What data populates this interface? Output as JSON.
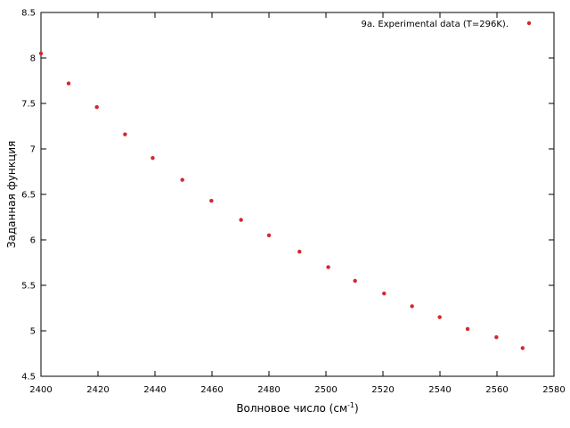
{
  "chart_data": {
    "type": "scatter",
    "xlabel": "Волновое число (см",
    "xlabel_sup": "-1",
    "xlabel_end": ")",
    "ylabel": "Заданная функция",
    "xlim": [
      2400,
      2580
    ],
    "ylim": [
      4.5,
      8.5
    ],
    "x_ticks": [
      "2400",
      "2420",
      "2440",
      "2460",
      "2480",
      "2500",
      "2520",
      "2540",
      "2560",
      "2580"
    ],
    "y_ticks": [
      "4.5",
      "5",
      "5.5",
      "6",
      "6.5",
      "7",
      "7.5",
      "8",
      "8.5"
    ],
    "grid": false,
    "legend_position": "top-right",
    "marker_color": "#d62728",
    "series": [
      {
        "name": "9a. Experimental data (T=296K).",
        "x": [
          2400,
          2409.7,
          2419.6,
          2429.5,
          2439.2,
          2449.6,
          2459.8,
          2470.2,
          2480,
          2490.7,
          2500.8,
          2510.2,
          2520.4,
          2530.2,
          2539.9,
          2549.7,
          2559.8,
          2569
        ],
        "y": [
          8.05,
          7.72,
          7.46,
          7.16,
          6.9,
          6.66,
          6.43,
          6.22,
          6.05,
          5.87,
          5.7,
          5.55,
          5.41,
          5.27,
          5.15,
          5.02,
          4.93,
          4.81
        ]
      }
    ]
  }
}
